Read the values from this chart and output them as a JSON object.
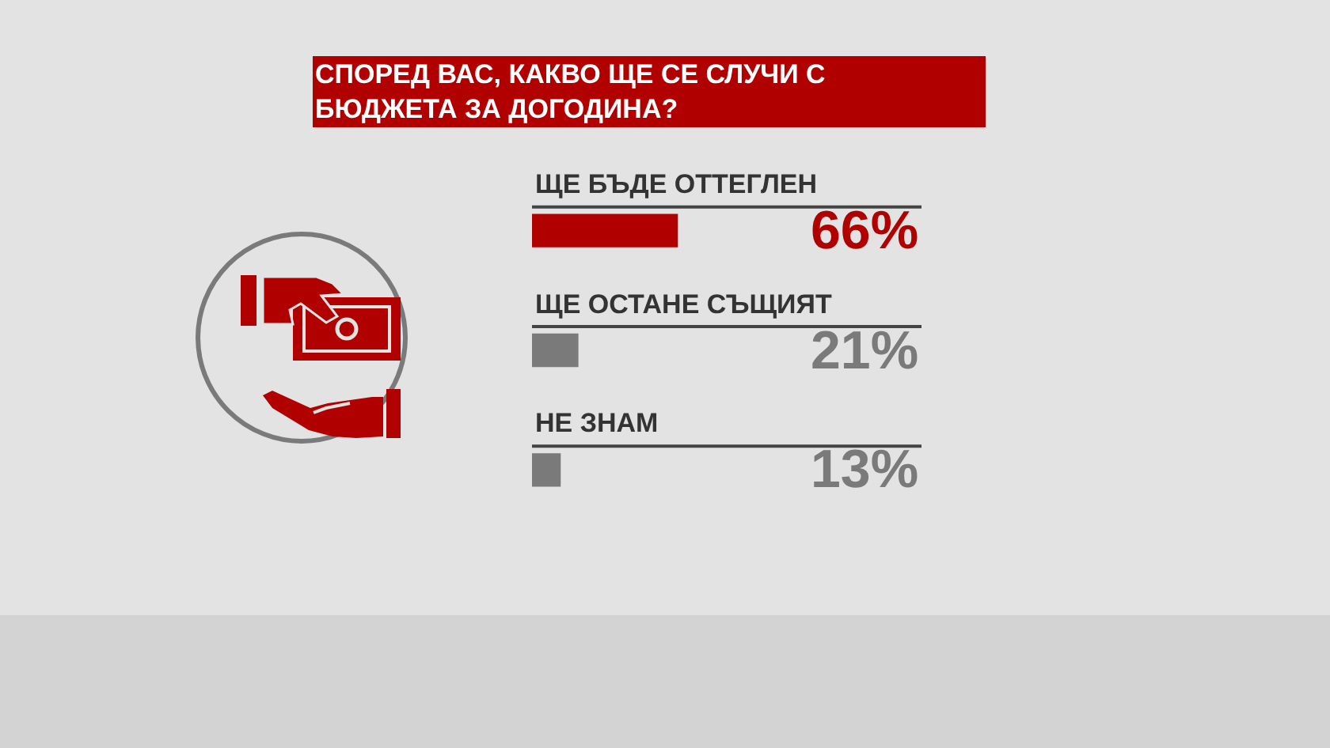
{
  "chart_data": {
    "type": "bar",
    "orientation": "horizontal",
    "title": "СПОРЕД ВАС, КАКВО ЩЕ СЕ СЛУЧИ С БЮДЖЕТА ЗА ДОГОДИНА?",
    "categories": [
      "ЩЕ БЪДЕ ОТТЕГЛЕН",
      "ЩЕ ОСТАНЕ СЪЩИЯТ",
      "НЕ ЗНАМ"
    ],
    "values": [
      66,
      21,
      13
    ],
    "colors": [
      "#b00000",
      "#7a7a7a",
      "#7a7a7a"
    ],
    "value_labels": [
      "66%",
      "21%",
      "13%"
    ],
    "tick_labels": "y"
  }
}
